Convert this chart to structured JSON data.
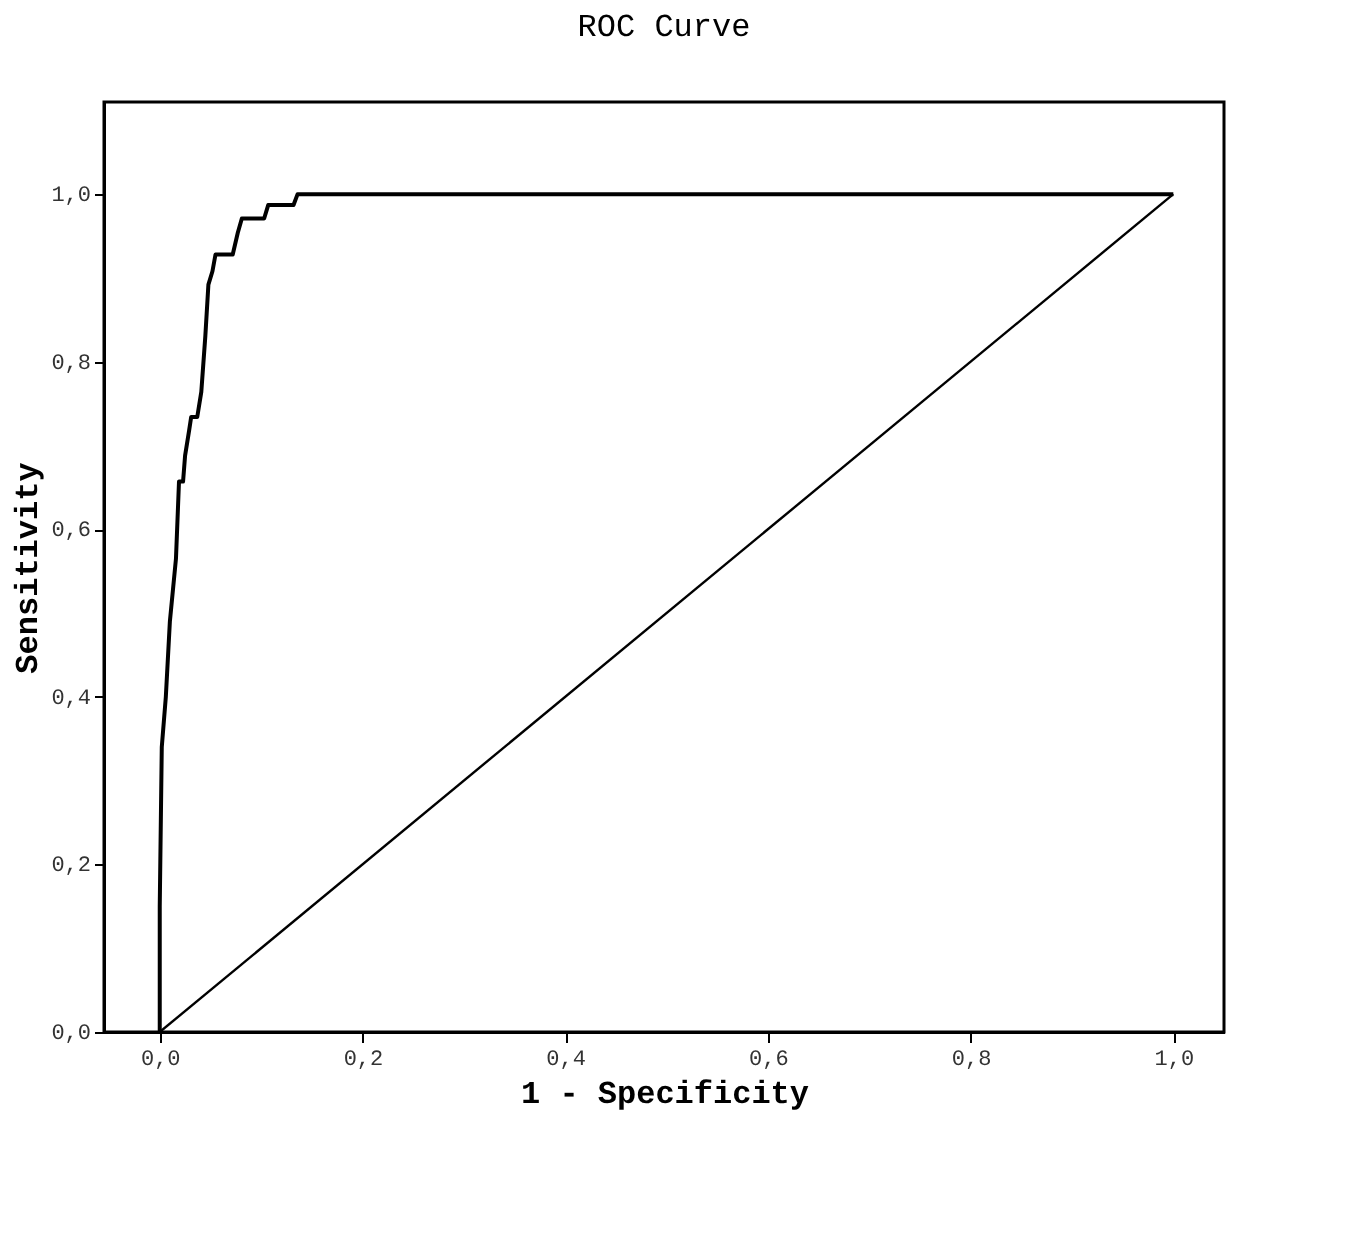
{
  "chart_data": {
    "type": "line",
    "title": "ROC Curve",
    "xlabel": "1 - Specificity",
    "ylabel": "Sensitivity",
    "series": [
      {
        "color": "#000000",
        "x": [
          0,
          0,
          0.002,
          0.006,
          0.01,
          0.016,
          0.019,
          0.023,
          0.025,
          0.029,
          0.031,
          0.037,
          0.041,
          0.045,
          0.048,
          0.052,
          0.055,
          0.072,
          0.077,
          0.081,
          0.103,
          0.107,
          0.132,
          0.136,
          1.0
        ],
        "values": [
          0,
          0.15,
          0.34,
          0.4,
          0.49,
          0.565,
          0.657,
          0.657,
          0.688,
          0.718,
          0.734,
          0.734,
          0.764,
          0.831,
          0.892,
          0.908,
          0.928,
          0.928,
          0.954,
          0.971,
          0.971,
          0.987,
          0.987,
          1.0,
          1.0
        ]
      },
      {
        "color": "#000000",
        "x": [
          0,
          1
        ],
        "values": [
          0,
          1
        ]
      }
    ],
    "xlim": [
      -0.055,
      1.05
    ],
    "ylim": [
      0,
      1.11
    ],
    "xticks": [
      {
        "value": 0,
        "label": "0,0"
      },
      {
        "value": 0.2,
        "label": "0,2"
      },
      {
        "value": 0.4,
        "label": "0,4"
      },
      {
        "value": 0.6,
        "label": "0,6"
      },
      {
        "value": 0.8,
        "label": "0,8"
      },
      {
        "value": 1,
        "label": "1,0"
      }
    ],
    "yticks": [
      {
        "value": 0,
        "label": "0,0"
      },
      {
        "value": 0.2,
        "label": "0,2"
      },
      {
        "value": 0.4,
        "label": "0,4"
      },
      {
        "value": 0.6,
        "label": "0,6"
      },
      {
        "value": 0.8,
        "label": "0,8"
      },
      {
        "value": 1,
        "label": "1,0"
      }
    ],
    "grid": false,
    "marker": "none",
    "line_style": "solid"
  }
}
